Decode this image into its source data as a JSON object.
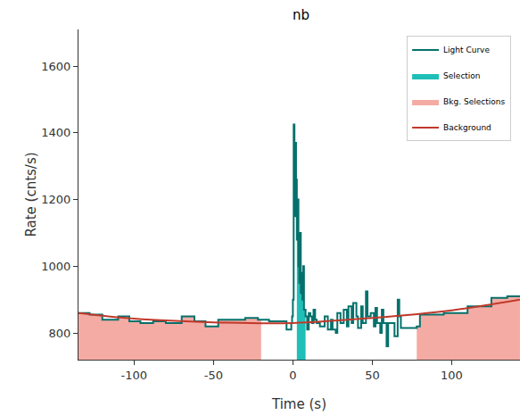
{
  "chart_data": {
    "type": "line",
    "title": "nb",
    "x_label": "Time (s)",
    "y_label": "Rate (cnts/s)",
    "xlim": [
      -135,
      143
    ],
    "ylim": [
      720,
      1710
    ],
    "xticks": [
      -100,
      -50,
      0,
      50,
      100
    ],
    "yticks": [
      800,
      1000,
      1200,
      1400,
      1600
    ],
    "grid": false,
    "legend": "upper right",
    "series": [
      {
        "name": "Light Curve",
        "color": "#05716c",
        "type": "step",
        "bins": [
          -135,
          -128,
          -120,
          -110,
          -103,
          -96,
          -88,
          -80,
          -70,
          -62,
          -55,
          -47,
          -38,
          -30,
          -22,
          -15,
          -8,
          -4,
          -1,
          -0.5,
          0,
          0.5,
          1,
          1.5,
          2,
          2.5,
          3,
          3.5,
          4,
          4.5,
          5,
          5.5,
          6,
          6.5,
          7,
          8,
          9,
          10,
          11,
          12,
          13,
          14,
          15,
          17,
          19,
          20,
          22,
          24,
          25,
          27,
          28,
          30,
          32,
          34,
          35,
          37,
          38,
          40,
          41,
          43,
          44,
          46,
          47,
          49,
          51,
          52,
          53,
          55,
          56,
          57,
          59,
          60,
          62,
          64,
          66,
          67,
          68,
          78,
          80,
          95,
          110,
          120,
          125,
          135,
          143
        ],
        "values": [
          860,
          855,
          840,
          850,
          835,
          830,
          835,
          830,
          850,
          835,
          820,
          840,
          840,
          845,
          840,
          835,
          835,
          810,
          830,
          850,
          900,
          1425,
          1150,
          1370,
          1260,
          1080,
          1200,
          1000,
          950,
          1100,
          920,
          980,
          900,
          1000,
          870,
          850,
          810,
          860,
          850,
          830,
          870,
          840,
          830,
          820,
          820,
          850,
          810,
          840,
          810,
          800,
          860,
          830,
          870,
          820,
          880,
          830,
          890,
          850,
          815,
          880,
          830,
          925,
          850,
          860,
          820,
          875,
          830,
          800,
          870,
          830,
          760,
          830,
          830,
          790,
          900,
          850,
          815,
          820,
          855,
          860,
          880,
          880,
          905,
          910
        ]
      },
      {
        "name": "Selection",
        "color": "#1fbfb8",
        "type": "area",
        "intervals": [
          [
            2.5,
            8
          ]
        ]
      },
      {
        "name": "Bkg. Selections",
        "color": "#f4aba3",
        "type": "area",
        "intervals": [
          [
            -135,
            -20
          ],
          [
            78,
            143
          ]
        ]
      },
      {
        "name": "Background",
        "color": "#c0392b",
        "type": "line",
        "x": [
          -135,
          -100,
          -50,
          0,
          50,
          100,
          143
        ],
        "values": [
          860,
          843,
          832,
          830,
          845,
          868,
          900
        ]
      }
    ]
  }
}
